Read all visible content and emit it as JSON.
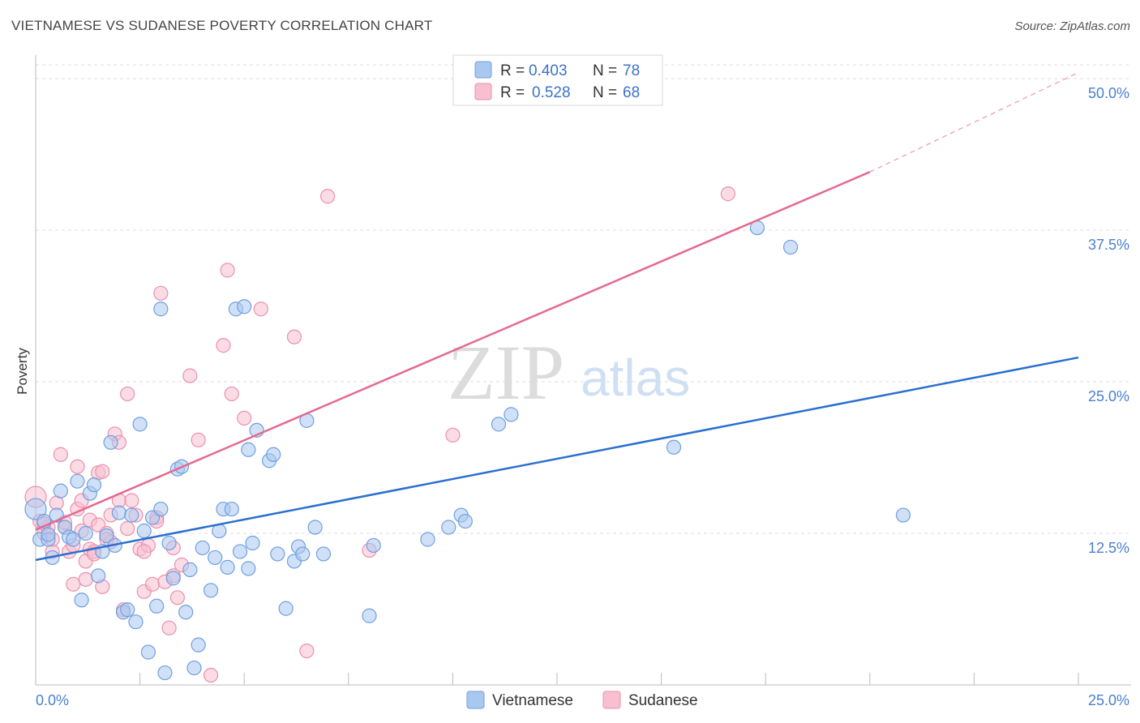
{
  "header": {
    "title": "VIETNAMESE VS SUDANESE POVERTY CORRELATION CHART",
    "source": "Source: ZipAtlas.com"
  },
  "watermark": {
    "zip": "ZIP",
    "atlas": "atlas"
  },
  "legend": {
    "rows": [
      {
        "r_label": "R =",
        "r_value": "0.403",
        "n_label": "N =",
        "n_value": "78"
      },
      {
        "r_label": "R =",
        "r_value": "0.528",
        "n_label": "N =",
        "n_value": "68"
      }
    ]
  },
  "colors": {
    "vietnamese_fill": "#a9c8f0",
    "vietnamese_stroke": "#6f9fe0",
    "vietnamese_line": "#2a6fcf",
    "sudanese_fill": "#f7bfd0",
    "sudanese_stroke": "#eb8fae",
    "sudanese_line": "#e5698f",
    "grid": "#dddddd",
    "axis_text": "#4a7fd0"
  },
  "chart_data": {
    "type": "scatter",
    "title": "VIETNAMESE VS SUDANESE POVERTY CORRELATION CHART",
    "ylabel": "Poverty",
    "xlabel": "",
    "xlim": [
      0,
      25
    ],
    "ylim": [
      0,
      50
    ],
    "x_tick_labels": [
      "0.0%",
      "25.0%"
    ],
    "y_tick_labels": [
      "12.5%",
      "25.0%",
      "37.5%",
      "50.0%"
    ],
    "y_ticks": [
      12.5,
      25,
      37.5,
      50
    ],
    "grid": true,
    "legend_position": "top-center",
    "series": [
      {
        "name": "Vietnamese",
        "r": 0.403,
        "n": 78,
        "trend": {
          "x0": 0,
          "y0": 10.3,
          "x1": 25,
          "y1": 27.0
        },
        "points": [
          [
            0.0,
            14.5
          ],
          [
            0.1,
            12.0
          ],
          [
            0.2,
            13.5
          ],
          [
            0.3,
            12.0
          ],
          [
            0.4,
            10.5
          ],
          [
            0.5,
            14.0
          ],
          [
            0.6,
            16.0
          ],
          [
            0.7,
            13.0
          ],
          [
            0.8,
            12.2
          ],
          [
            0.9,
            12.0
          ],
          [
            1.0,
            16.8
          ],
          [
            1.1,
            7.0
          ],
          [
            1.2,
            12.5
          ],
          [
            1.3,
            15.8
          ],
          [
            1.4,
            16.5
          ],
          [
            1.5,
            9.0
          ],
          [
            1.6,
            11.0
          ],
          [
            1.7,
            12.3
          ],
          [
            1.8,
            20.0
          ],
          [
            1.9,
            11.5
          ],
          [
            2.0,
            14.2
          ],
          [
            2.1,
            6.0
          ],
          [
            2.2,
            6.2
          ],
          [
            2.3,
            14.0
          ],
          [
            2.4,
            5.2
          ],
          [
            2.5,
            21.5
          ],
          [
            2.6,
            12.7
          ],
          [
            2.7,
            2.7
          ],
          [
            2.8,
            13.8
          ],
          [
            2.9,
            6.5
          ],
          [
            3.0,
            31.0
          ],
          [
            3.0,
            14.5
          ],
          [
            3.1,
            1.0
          ],
          [
            3.2,
            11.7
          ],
          [
            3.3,
            8.8
          ],
          [
            3.4,
            17.8
          ],
          [
            3.5,
            18.0
          ],
          [
            3.6,
            6.0
          ],
          [
            3.7,
            9.5
          ],
          [
            3.8,
            1.4
          ],
          [
            3.9,
            3.3
          ],
          [
            4.0,
            11.3
          ],
          [
            4.2,
            7.8
          ],
          [
            4.3,
            10.5
          ],
          [
            4.4,
            12.7
          ],
          [
            4.5,
            14.5
          ],
          [
            4.6,
            9.7
          ],
          [
            4.7,
            14.5
          ],
          [
            4.8,
            31.0
          ],
          [
            4.9,
            11.0
          ],
          [
            5.0,
            31.2
          ],
          [
            5.1,
            9.6
          ],
          [
            5.2,
            11.7
          ],
          [
            5.1,
            19.4
          ],
          [
            5.3,
            21.0
          ],
          [
            5.6,
            18.5
          ],
          [
            5.7,
            19.0
          ],
          [
            5.8,
            10.8
          ],
          [
            6.0,
            6.3
          ],
          [
            6.2,
            10.2
          ],
          [
            6.3,
            11.4
          ],
          [
            6.4,
            10.8
          ],
          [
            6.5,
            21.8
          ],
          [
            6.7,
            13.0
          ],
          [
            6.9,
            10.8
          ],
          [
            8.0,
            5.7
          ],
          [
            8.1,
            11.5
          ],
          [
            9.4,
            12.0
          ],
          [
            9.9,
            13.0
          ],
          [
            10.2,
            14.0
          ],
          [
            10.3,
            13.5
          ],
          [
            11.1,
            21.5
          ],
          [
            11.4,
            22.3
          ],
          [
            15.3,
            19.6
          ],
          [
            17.3,
            37.7
          ],
          [
            18.1,
            36.1
          ],
          [
            20.8,
            14.0
          ],
          [
            0.3,
            12.4
          ]
        ]
      },
      {
        "name": "Sudanese",
        "r": 0.528,
        "n": 68,
        "trend": {
          "x0": 0,
          "y0": 12.8,
          "x1": 20,
          "y1": 42.3,
          "dash_x1": 25,
          "dash_y1": 50.5
        },
        "points": [
          [
            0.0,
            15.5
          ],
          [
            0.1,
            13.5
          ],
          [
            0.2,
            12.5
          ],
          [
            0.3,
            13.0
          ],
          [
            0.4,
            11.0
          ],
          [
            0.5,
            15.0
          ],
          [
            0.6,
            19.0
          ],
          [
            0.7,
            13.0
          ],
          [
            0.8,
            11.0
          ],
          [
            0.9,
            11.5
          ],
          [
            0.9,
            8.3
          ],
          [
            1.0,
            18.0
          ],
          [
            1.0,
            14.5
          ],
          [
            1.1,
            15.2
          ],
          [
            1.2,
            10.2
          ],
          [
            1.2,
            8.7
          ],
          [
            1.3,
            11.2
          ],
          [
            1.3,
            13.6
          ],
          [
            1.4,
            11.0
          ],
          [
            1.5,
            13.2
          ],
          [
            1.5,
            17.5
          ],
          [
            1.6,
            8.1
          ],
          [
            1.6,
            17.6
          ],
          [
            1.7,
            12.5
          ],
          [
            1.8,
            14.0
          ],
          [
            1.9,
            20.7
          ],
          [
            2.0,
            20.0
          ],
          [
            2.0,
            15.2
          ],
          [
            2.1,
            6.2
          ],
          [
            2.2,
            24.0
          ],
          [
            2.3,
            15.2
          ],
          [
            2.4,
            14.0
          ],
          [
            2.5,
            11.2
          ],
          [
            2.6,
            7.7
          ],
          [
            2.7,
            11.5
          ],
          [
            2.8,
            8.3
          ],
          [
            2.9,
            13.8
          ],
          [
            3.0,
            32.3
          ],
          [
            3.1,
            8.5
          ],
          [
            3.2,
            4.7
          ],
          [
            3.3,
            11.3
          ],
          [
            3.4,
            7.2
          ],
          [
            3.5,
            9.9
          ],
          [
            3.7,
            25.5
          ],
          [
            3.9,
            20.2
          ],
          [
            4.2,
            0.8
          ],
          [
            4.5,
            28.0
          ],
          [
            4.6,
            34.2
          ],
          [
            4.7,
            24.0
          ],
          [
            5.0,
            22.0
          ],
          [
            5.4,
            31.0
          ],
          [
            6.2,
            28.7
          ],
          [
            6.5,
            2.8
          ],
          [
            7.0,
            40.3
          ],
          [
            8.0,
            11.1
          ],
          [
            10.0,
            20.6
          ],
          [
            16.6,
            40.5
          ],
          [
            0.2,
            13.3
          ],
          [
            0.4,
            12.0
          ],
          [
            0.7,
            13.4
          ],
          [
            1.1,
            12.7
          ],
          [
            1.4,
            10.8
          ],
          [
            1.8,
            11.8
          ],
          [
            2.2,
            12.9
          ],
          [
            2.6,
            11.0
          ],
          [
            2.9,
            13.5
          ],
          [
            3.3,
            9.0
          ],
          [
            1.7,
            12.0
          ]
        ]
      }
    ]
  },
  "bottom_legend": {
    "items": [
      "Vietnamese",
      "Sudanese"
    ]
  }
}
